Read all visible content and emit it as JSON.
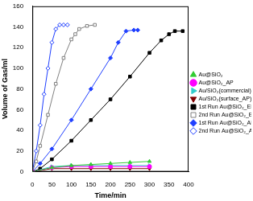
{
  "chart_data": {
    "type": "line",
    "x_label": "Time/min",
    "y_label": "Volume of Gas/ml",
    "xlim": [
      0,
      400
    ],
    "xticks": [
      0,
      50,
      100,
      150,
      200,
      250,
      300,
      350,
      400
    ],
    "ylim": [
      0,
      160
    ],
    "yticks": [
      0,
      20,
      40,
      60,
      80,
      100,
      120,
      140,
      160
    ],
    "grid": false,
    "legend": "right",
    "series": [
      {
        "name": "Au@SiO₂",
        "color": "#33cc33",
        "marker": "triangle-up",
        "x": [
          0,
          50,
          100,
          150,
          200,
          250,
          300
        ],
        "values": [
          0,
          4,
          6,
          7,
          8,
          9,
          10
        ]
      },
      {
        "name": "Au@SiO₂_AP",
        "color": "#ff00ff",
        "marker": "circle",
        "x": [
          0,
          50,
          100,
          150,
          200,
          250,
          300
        ],
        "values": [
          0,
          4,
          5,
          5,
          5,
          5,
          5
        ]
      },
      {
        "name": "Au/SiO₂(commercial)",
        "color": "#33cccc",
        "marker": "triangle-right",
        "x": [
          0,
          50,
          100,
          150,
          200,
          250,
          300
        ],
        "values": [
          0,
          5,
          6,
          6,
          6,
          6,
          6
        ]
      },
      {
        "name": "Au/SiO₂(surface_AP)",
        "color": "#800000",
        "marker": "triangle-down",
        "x": [
          0,
          50,
          100,
          150,
          200,
          250,
          300
        ],
        "values": [
          0,
          3,
          3,
          3,
          3,
          3,
          3
        ]
      },
      {
        "name": "1st Run Au@SiO₂_EN",
        "color": "#000000",
        "marker": "square",
        "x": [
          0,
          20,
          50,
          100,
          150,
          200,
          250,
          300,
          330,
          350,
          365,
          385
        ],
        "values": [
          0,
          3,
          12,
          30,
          50,
          70,
          92,
          115,
          127,
          133,
          136,
          136
        ]
      },
      {
        "name": "2nd Run Au@SiO₂_EN",
        "color": "#808080",
        "marker": "square-open",
        "x": [
          0,
          10,
          20,
          40,
          60,
          80,
          100,
          110,
          120,
          140,
          160
        ],
        "values": [
          0,
          10,
          25,
          55,
          85,
          110,
          128,
          133,
          138,
          141,
          142
        ]
      },
      {
        "name": "1st Run Au@SiO₂_AP",
        "color": "#1f3fff",
        "marker": "diamond",
        "x": [
          0,
          20,
          50,
          100,
          150,
          200,
          220,
          240,
          260,
          270
        ],
        "values": [
          0,
          8,
          22,
          50,
          80,
          110,
          125,
          136,
          137,
          137
        ]
      },
      {
        "name": "2nd Run Au@SiO₂_AP",
        "color": "#1f3fff",
        "marker": "diamond-open",
        "x": [
          0,
          10,
          20,
          30,
          40,
          50,
          60,
          70,
          80,
          90
        ],
        "values": [
          0,
          20,
          45,
          75,
          100,
          125,
          138,
          142,
          142,
          142
        ]
      }
    ]
  }
}
